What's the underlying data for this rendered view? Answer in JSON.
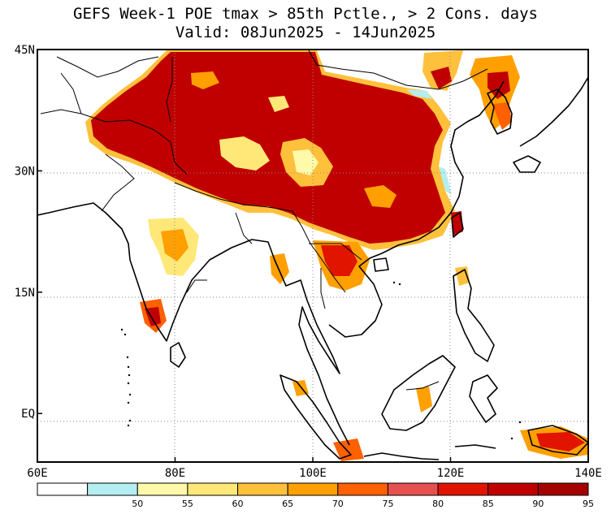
{
  "title_line1": "GEFS Week-1 POE tmax > 85th Pctle., > 2 Cons. days",
  "title_line2": "Valid: 08Jun2025 - 14Jun2025",
  "map": {
    "lon_range": [
      60,
      140
    ],
    "lat_range": [
      -6,
      45
    ],
    "lon_ticks": [
      {
        "value": 60,
        "label": "60E"
      },
      {
        "value": 80,
        "label": "80E"
      },
      {
        "value": 100,
        "label": "100E"
      },
      {
        "value": 120,
        "label": "120E"
      },
      {
        "value": 140,
        "label": "140E"
      }
    ],
    "lat_ticks": [
      {
        "value": 45,
        "label": "45N"
      },
      {
        "value": 30,
        "label": "30N"
      },
      {
        "value": 15,
        "label": "15N"
      },
      {
        "value": 0,
        "label": "EQ"
      }
    ],
    "grid": "dotted"
  },
  "colorbar": {
    "bins": [
      {
        "color": "#ffffff"
      },
      {
        "color": "#b4eef0",
        "label": "50"
      },
      {
        "color": "#fffaaa",
        "label": "55"
      },
      {
        "color": "#ffe878",
        "label": "60"
      },
      {
        "color": "#ffc03c",
        "label": "65"
      },
      {
        "color": "#ffa000",
        "label": "70"
      },
      {
        "color": "#ff6000",
        "label": "75"
      },
      {
        "color": "#e65050",
        "label": "80"
      },
      {
        "color": "#e11400",
        "label": "85"
      },
      {
        "color": "#c00000",
        "label": "90"
      },
      {
        "color": "#a50000",
        "label": "95"
      }
    ]
  }
}
